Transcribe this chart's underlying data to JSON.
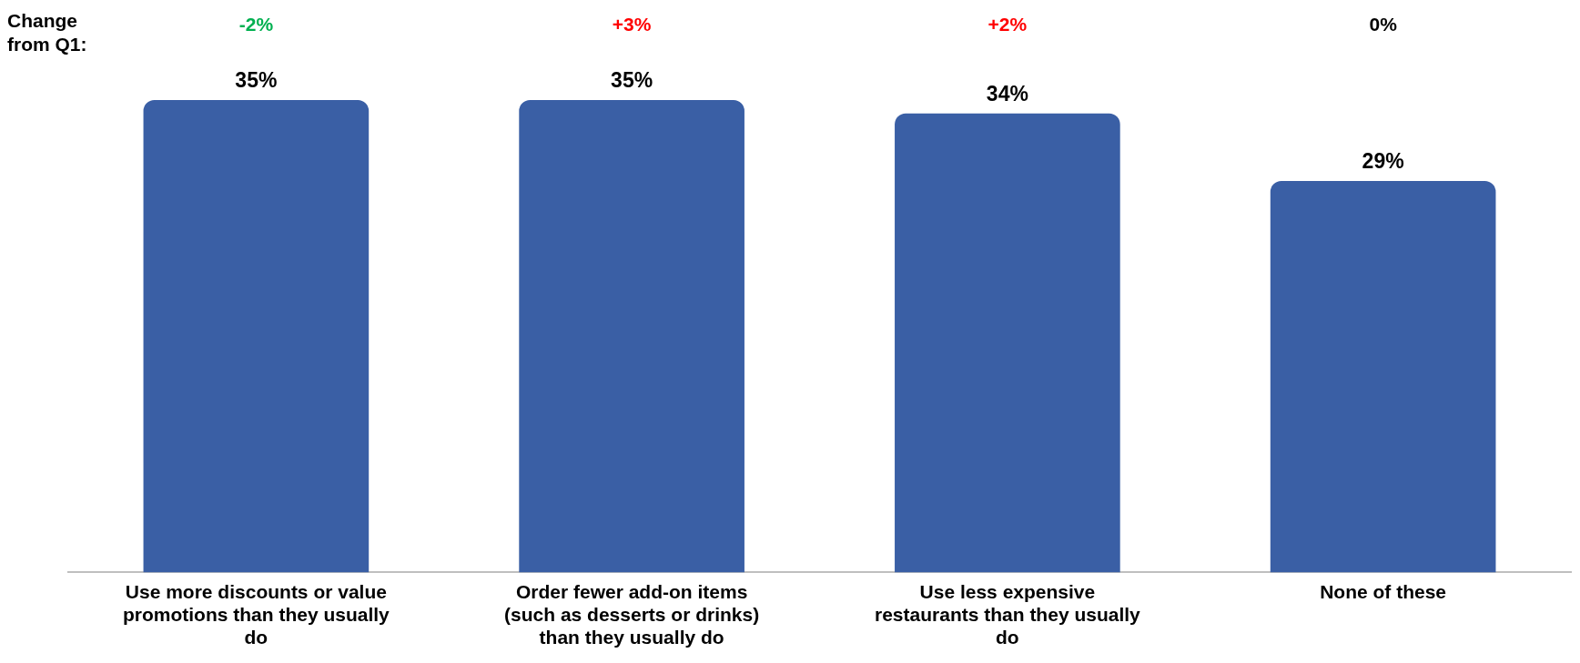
{
  "chart_data": {
    "type": "bar",
    "categories": [
      "Use more discounts or value promotions than they usually do",
      "Order fewer add-on items (such as desserts or drinks) than they usually do",
      "Use less expensive restaurants than they usually do",
      "None of these"
    ],
    "values": [
      35,
      35,
      34,
      29
    ],
    "color": "#3a5fa5",
    "value_labels": [
      "35%",
      "35%",
      "34%",
      "29%"
    ],
    "annotations": [
      "Change from Q1:",
      "-2%",
      "+3%",
      "+2%",
      "0%"
    ]
  }
}
